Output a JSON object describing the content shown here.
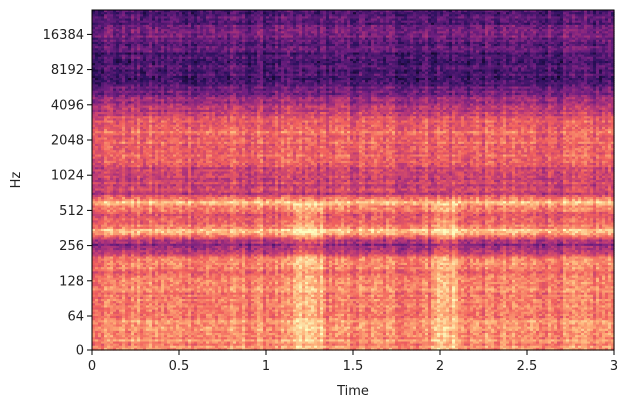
{
  "chart_data": {
    "type": "heatmap",
    "title": "",
    "xlabel": "Time",
    "ylabel": "Hz",
    "xlim": [
      0,
      3
    ],
    "x_ticks": [
      "0",
      "0.5",
      "1",
      "1.5",
      "2",
      "2.5",
      "3"
    ],
    "x_tick_values": [
      0,
      0.5,
      1,
      1.5,
      2,
      2.5,
      3
    ],
    "y_scale": "log2 (symlog, linear below 64 Hz)",
    "y_ticks": [
      "0",
      "64",
      "128",
      "256",
      "512",
      "1024",
      "2048",
      "4096",
      "8192",
      "16384"
    ],
    "y_tick_values": [
      0,
      64,
      128,
      256,
      512,
      1024,
      2048,
      4096,
      8192,
      16384
    ],
    "ylim_top_hz": 22050,
    "colormap": "magma",
    "colormap_stops": [
      "#000004",
      "#2c115f",
      "#721f81",
      "#b73779",
      "#f1605d",
      "#feb078",
      "#fcfdbf"
    ],
    "intensity_profile_by_frequency": [
      {
        "hz": 0,
        "level": 0.78
      },
      {
        "hz": 64,
        "level": 0.74
      },
      {
        "hz": 128,
        "level": 0.72
      },
      {
        "hz": 200,
        "level": 0.7
      },
      {
        "hz": 256,
        "level": 0.38
      },
      {
        "hz": 290,
        "level": 0.52
      },
      {
        "hz": 330,
        "level": 0.92
      },
      {
        "hz": 400,
        "level": 0.62
      },
      {
        "hz": 512,
        "level": 0.66
      },
      {
        "hz": 600,
        "level": 0.86
      },
      {
        "hz": 700,
        "level": 0.55
      },
      {
        "hz": 1024,
        "level": 0.55
      },
      {
        "hz": 1500,
        "level": 0.66
      },
      {
        "hz": 2048,
        "level": 0.7
      },
      {
        "hz": 3000,
        "level": 0.64
      },
      {
        "hz": 4096,
        "level": 0.46
      },
      {
        "hz": 6000,
        "level": 0.26
      },
      {
        "hz": 8192,
        "level": 0.22
      },
      {
        "hz": 12000,
        "level": 0.26
      },
      {
        "hz": 16384,
        "level": 0.34
      },
      {
        "hz": 22050,
        "level": 0.24
      }
    ],
    "bright_events_time": [
      1.15,
      1.32,
      1.95,
      2.1
    ]
  }
}
